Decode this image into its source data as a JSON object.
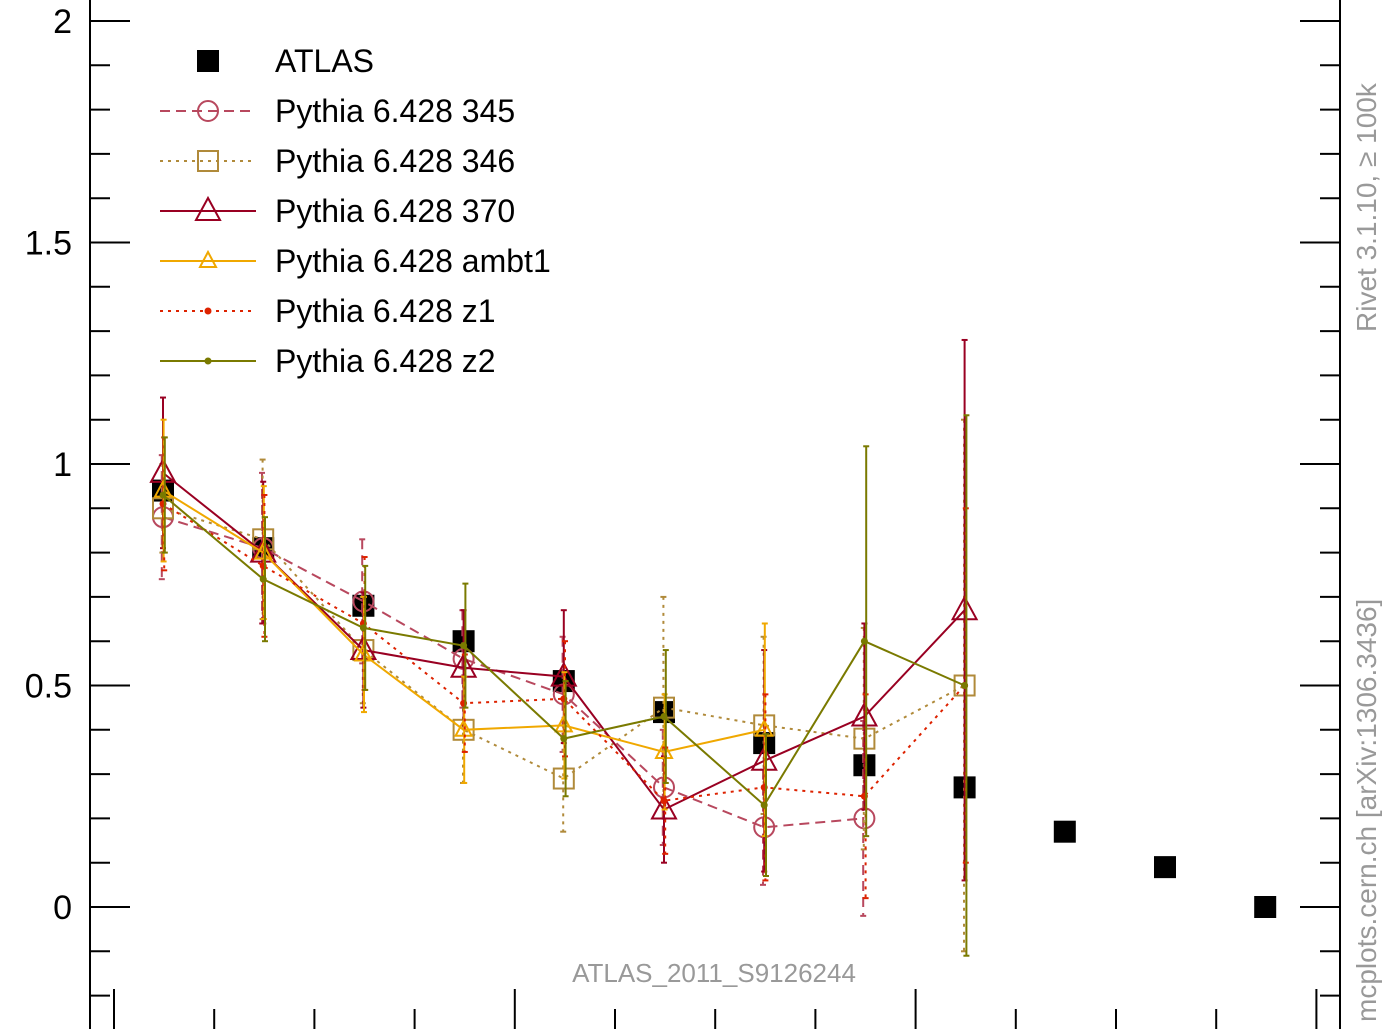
{
  "chart_data": {
    "type": "scatter",
    "ylim": [
      -0.2,
      2.0
    ],
    "xlim": [
      0.5,
      12.5
    ],
    "y_ticks": [
      {
        "value": 0,
        "label": "0"
      },
      {
        "value": 0.5,
        "label": "0.5"
      },
      {
        "value": 1,
        "label": "1"
      },
      {
        "value": 1.5,
        "label": "1.5"
      },
      {
        "value": 2,
        "label": "2"
      }
    ],
    "legend_placement": "top-left",
    "annotation": "ATLAS_2011_S9126244",
    "side_text_top": "Rivet 3.1.10, ≥ 100k",
    "side_text_bottom": "mcplots.cern.ch [arXiv:1306.3436]",
    "series": [
      {
        "name": "ATLAS",
        "color": "#000000",
        "style": "none",
        "marker": "filled-square",
        "x": [
          1,
          2,
          3,
          4,
          5,
          6,
          7,
          8,
          9,
          10,
          11,
          12
        ],
        "y": [
          0.94,
          0.81,
          0.68,
          0.6,
          0.51,
          0.44,
          0.37,
          0.32,
          0.27,
          0.17,
          0.09,
          0.0
        ]
      },
      {
        "name": "Pythia 6.428 345",
        "color": "#b8485e",
        "style": "dashed",
        "marker": "open-circle",
        "x": [
          1,
          2,
          3,
          4,
          5,
          6,
          7,
          8
        ],
        "y": [
          0.88,
          0.81,
          0.69,
          0.56,
          0.48,
          0.27,
          0.18,
          0.2
        ],
        "err": [
          0.14,
          0.17,
          0.14,
          0.11,
          0.13,
          0.13,
          0.13,
          0.22
        ]
      },
      {
        "name": "Pythia 6.428 346",
        "color": "#b08a3a",
        "style": "dotted",
        "marker": "open-square",
        "x": [
          1,
          2,
          3,
          4,
          5,
          6,
          7,
          8,
          9
        ],
        "y": [
          0.9,
          0.83,
          0.58,
          0.4,
          0.29,
          0.45,
          0.41,
          0.38,
          0.5
        ],
        "err": [
          0.1,
          0.18,
          0.12,
          0.12,
          0.12,
          0.25,
          0.2,
          0.25,
          0.6
        ]
      },
      {
        "name": "Pythia 6.428 370",
        "color": "#990022",
        "style": "solid",
        "marker": "open-triangle",
        "x": [
          1,
          2,
          3,
          4,
          5,
          6,
          7,
          8,
          9
        ],
        "y": [
          0.98,
          0.8,
          0.58,
          0.54,
          0.52,
          0.22,
          0.33,
          0.43,
          0.67
        ],
        "err": [
          0.17,
          0.16,
          0.13,
          0.13,
          0.15,
          0.12,
          0.25,
          0.21,
          0.61
        ]
      },
      {
        "name": "Pythia 6.428 ambt1",
        "color": "#f0a800",
        "style": "solid",
        "marker": "open-triangle-small",
        "x": [
          1,
          2,
          3,
          4,
          5,
          6,
          7
        ],
        "y": [
          0.94,
          0.8,
          0.57,
          0.4,
          0.41,
          0.35,
          0.4
        ],
        "err": [
          0.16,
          0.15,
          0.13,
          0.12,
          0.12,
          0.13,
          0.24
        ]
      },
      {
        "name": "Pythia 6.428 z1",
        "color": "#dd2200",
        "style": "dotted",
        "marker": "dot",
        "x": [
          1,
          2,
          3,
          4,
          5,
          6,
          7,
          8,
          9
        ],
        "y": [
          0.91,
          0.77,
          0.64,
          0.46,
          0.47,
          0.24,
          0.27,
          0.25,
          0.5
        ],
        "err": [
          0.15,
          0.16,
          0.15,
          0.11,
          0.13,
          0.12,
          0.21,
          0.23,
          0.4
        ]
      },
      {
        "name": "Pythia 6.428 z2",
        "color": "#7a7a00",
        "style": "solid",
        "marker": "dot",
        "x": [
          1,
          2,
          3,
          4,
          5,
          6,
          7,
          8,
          9
        ],
        "y": [
          0.93,
          0.74,
          0.63,
          0.59,
          0.38,
          0.43,
          0.23,
          0.6,
          0.5
        ],
        "err": [
          0.13,
          0.14,
          0.14,
          0.14,
          0.13,
          0.15,
          0.16,
          0.44,
          0.61
        ]
      }
    ]
  }
}
